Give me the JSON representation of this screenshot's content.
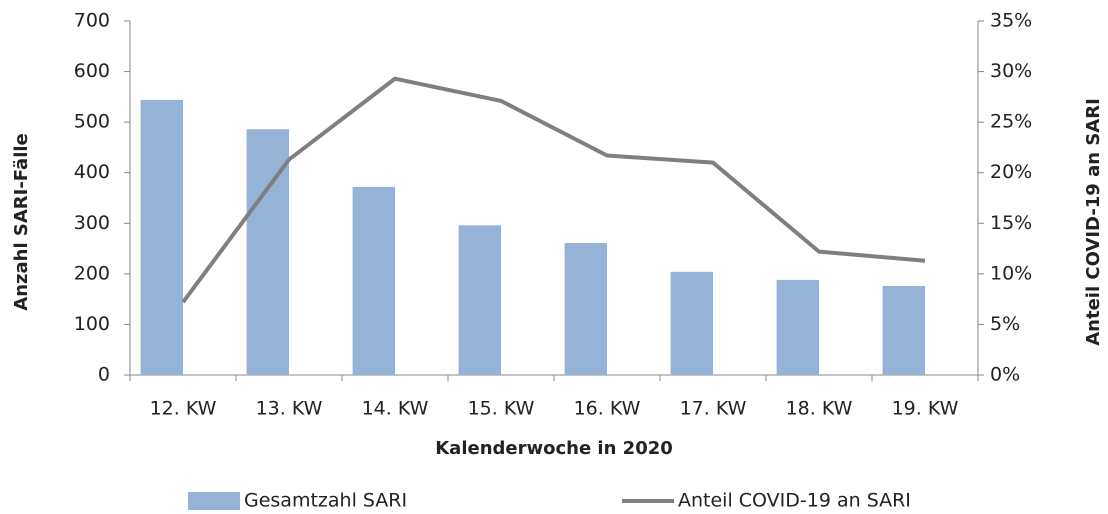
{
  "chart_data": {
    "type": "bar",
    "categories": [
      "12. KW",
      "13. KW",
      "14. KW",
      "15. KW",
      "16. KW",
      "17. KW",
      "18. KW",
      "19. KW"
    ],
    "series": [
      {
        "name": "Gesamtzahl SARI",
        "type": "bar",
        "color": "#95b3d7",
        "values": [
          544,
          486,
          372,
          296,
          261,
          204,
          188,
          176
        ]
      },
      {
        "name": "Anteil COVID-19 an SARI",
        "type": "line",
        "axis": "y2",
        "color": "#7f7f7f",
        "values": [
          7.2,
          21.3,
          29.3,
          27.1,
          21.7,
          21.0,
          12.2,
          11.3
        ]
      }
    ],
    "x_label": "Kalenderwoche in 2020",
    "y_label": "Anzahl SARI-Fälle",
    "y2_label": "Anteil COVID-19 an SARI",
    "ylim": [
      0,
      700
    ],
    "yticks": [
      0,
      100,
      200,
      300,
      400,
      500,
      600,
      700
    ],
    "y2lim": [
      0,
      35
    ],
    "y2ticks": [
      {
        "value": 0,
        "label": "0%"
      },
      {
        "value": 5,
        "label": "5%"
      },
      {
        "value": 10,
        "label": "10%"
      },
      {
        "value": 15,
        "label": "15%"
      },
      {
        "value": 20,
        "label": "20%"
      },
      {
        "value": 25,
        "label": "25%"
      },
      {
        "value": 30,
        "label": "30%"
      },
      {
        "value": 35,
        "label": "35%"
      }
    ],
    "legend": "bottom"
  }
}
